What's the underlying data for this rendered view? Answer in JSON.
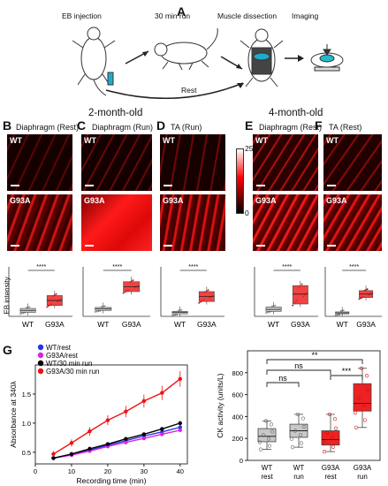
{
  "panels": {
    "A": {
      "label": "A",
      "steps": [
        "EB injection",
        "30 min run",
        "Muscle dissection",
        "Imaging"
      ],
      "rest_label": "Rest"
    },
    "groups": {
      "two_month": "2-month-old",
      "four_month": "4-month-old"
    },
    "micro": [
      {
        "label": "B",
        "title": "Diaphragm (Rest)",
        "wt": "WT",
        "mut": "G93A"
      },
      {
        "label": "C",
        "title": "Diaphragm (Run)",
        "wt": "WT",
        "mut": "G93A"
      },
      {
        "label": "D",
        "title": "TA (Run)",
        "wt": "WT",
        "mut": "G93A"
      },
      {
        "label": "E",
        "title": "Diaphragm (Rest)",
        "wt": "WT",
        "mut": "G93A"
      },
      {
        "label": "F",
        "title": "TA (Rest)",
        "wt": "WT",
        "mut": "G93A"
      }
    ],
    "colorbar": {
      "max": "255",
      "min": "0",
      "colors": [
        "#ffffff",
        "#ff0000",
        "#000000"
      ]
    }
  },
  "chart_data": [
    {
      "type": "box",
      "panel": "B",
      "ylabel": "EB intensity",
      "categories": [
        "WT",
        "G93A"
      ],
      "significance": "****",
      "boxes": [
        {
          "q1": 0.08,
          "median": 0.12,
          "q3": 0.16
        },
        {
          "q1": 0.22,
          "median": 0.32,
          "q3": 0.42
        }
      ]
    },
    {
      "type": "box",
      "panel": "C",
      "categories": [
        "WT",
        "G93A"
      ],
      "significance": "****",
      "boxes": [
        {
          "q1": 0.12,
          "median": 0.15,
          "q3": 0.18
        },
        {
          "q1": 0.5,
          "median": 0.6,
          "q3": 0.7
        }
      ]
    },
    {
      "type": "box",
      "panel": "D",
      "categories": [
        "WT",
        "G93A"
      ],
      "significance": "****",
      "boxes": [
        {
          "q1": 0.05,
          "median": 0.08,
          "q3": 0.1
        },
        {
          "q1": 0.3,
          "median": 0.4,
          "q3": 0.5
        }
      ]
    },
    {
      "type": "box",
      "panel": "E",
      "categories": [
        "WT",
        "G93A"
      ],
      "significance": "****",
      "boxes": [
        {
          "q1": 0.1,
          "median": 0.14,
          "q3": 0.19
        },
        {
          "q1": 0.25,
          "median": 0.45,
          "q3": 0.62
        }
      ]
    },
    {
      "type": "box",
      "panel": "F",
      "categories": [
        "WT",
        "G93A"
      ],
      "significance": "****",
      "boxes": [
        {
          "q1": 0.05,
          "median": 0.07,
          "q3": 0.09
        },
        {
          "q1": 0.38,
          "median": 0.45,
          "q3": 0.52
        }
      ]
    },
    {
      "type": "line",
      "panel": "G",
      "xlabel": "Recording time (min)",
      "ylabel": "Absorbance at 340λ",
      "x": [
        5,
        10,
        15,
        20,
        25,
        30,
        35,
        40
      ],
      "xlim": [
        0,
        42
      ],
      "ylim": [
        0.3,
        2.0
      ],
      "xticks": [
        0,
        10,
        20,
        30,
        40
      ],
      "yticks": [
        0.5,
        1.0,
        1.5
      ],
      "series": [
        {
          "name": "WT/rest",
          "color": "#2233ee",
          "values": [
            0.4,
            0.46,
            0.54,
            0.62,
            0.7,
            0.78,
            0.85,
            0.93
          ]
        },
        {
          "name": "G93A/rest",
          "color": "#dd22dd",
          "values": [
            0.4,
            0.45,
            0.52,
            0.6,
            0.67,
            0.74,
            0.81,
            0.88
          ]
        },
        {
          "name": "WT/30 min run",
          "color": "#000000",
          "values": [
            0.4,
            0.47,
            0.56,
            0.64,
            0.73,
            0.81,
            0.9,
            1.0
          ]
        },
        {
          "name": "G93A/30 min run",
          "color": "#ee1111",
          "values": [
            0.47,
            0.66,
            0.86,
            1.05,
            1.2,
            1.38,
            1.52,
            1.76
          ]
        }
      ]
    },
    {
      "type": "box",
      "panel": "CK",
      "ylabel": "CK activity (units/L)",
      "categories": [
        [
          "WT",
          "rest"
        ],
        [
          "WT",
          "run"
        ],
        [
          "G93A",
          "rest"
        ],
        [
          "G93A",
          "run"
        ]
      ],
      "ylim": [
        0,
        1000
      ],
      "yticks": [
        0,
        200,
        400,
        600,
        800
      ],
      "boxes": [
        {
          "min": 100,
          "q1": 170,
          "median": 220,
          "q3": 290,
          "max": 360,
          "color": "#c8c8c8"
        },
        {
          "min": 120,
          "q1": 210,
          "median": 270,
          "q3": 330,
          "max": 420,
          "color": "#c8c8c8"
        },
        {
          "min": 80,
          "q1": 140,
          "median": 190,
          "q3": 270,
          "max": 420,
          "color": "#ee2222"
        },
        {
          "min": 300,
          "q1": 450,
          "median": 520,
          "q3": 700,
          "max": 840,
          "color": "#ee2222"
        }
      ],
      "comparisons": [
        {
          "label": "ns",
          "from": 0,
          "to": 1
        },
        {
          "label": "ns",
          "from": 0,
          "to": 2
        },
        {
          "label": "**",
          "from": 0,
          "to": 3
        },
        {
          "label": "***",
          "from": 2,
          "to": 3
        }
      ]
    }
  ]
}
